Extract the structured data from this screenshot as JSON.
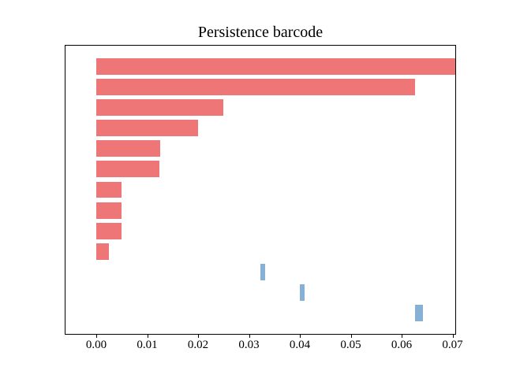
{
  "chart_data": {
    "type": "bar",
    "subtype": "persistence-barcode",
    "orientation": "horizontal",
    "title": "Persistence barcode",
    "xlabel": "",
    "ylabel": "",
    "xlim": [
      -0.0062,
      0.0707
    ],
    "ylim": [
      -1.04,
      13.04
    ],
    "bar_height": 0.8,
    "grid": false,
    "legend": null,
    "xticks": [
      {
        "value": 0.0,
        "label": "0.00"
      },
      {
        "value": 0.01,
        "label": "0.01"
      },
      {
        "value": 0.02,
        "label": "0.02"
      },
      {
        "value": 0.03,
        "label": "0.03"
      },
      {
        "value": 0.04,
        "label": "0.04"
      },
      {
        "value": 0.05,
        "label": "0.05"
      },
      {
        "value": 0.06,
        "label": "0.06"
      },
      {
        "value": 0.07,
        "label": "0.07"
      }
    ],
    "colors": {
      "dim0": "#ef7677",
      "dim1": "#87b1d4",
      "axes": "#000000",
      "background": "#ffffff"
    },
    "bars": [
      {
        "dim": 0,
        "birth": 0.0,
        "death": "inf"
      },
      {
        "dim": 0,
        "birth": 0.0,
        "death": 0.0626
      },
      {
        "dim": 0,
        "birth": 0.0,
        "death": 0.025
      },
      {
        "dim": 0,
        "birth": 0.0,
        "death": 0.02
      },
      {
        "dim": 0,
        "birth": 0.0,
        "death": 0.0125
      },
      {
        "dim": 0,
        "birth": 0.0,
        "death": 0.0124
      },
      {
        "dim": 0,
        "birth": 0.0,
        "death": 0.005
      },
      {
        "dim": 0,
        "birth": 0.0,
        "death": 0.005
      },
      {
        "dim": 0,
        "birth": 0.0,
        "death": 0.005
      },
      {
        "dim": 0,
        "birth": 0.0,
        "death": 0.0025
      },
      {
        "dim": 1,
        "birth": 0.0322,
        "death": 0.0332
      },
      {
        "dim": 1,
        "birth": 0.04,
        "death": 0.0409
      },
      {
        "dim": 1,
        "birth": 0.0626,
        "death": 0.0642
      }
    ]
  }
}
